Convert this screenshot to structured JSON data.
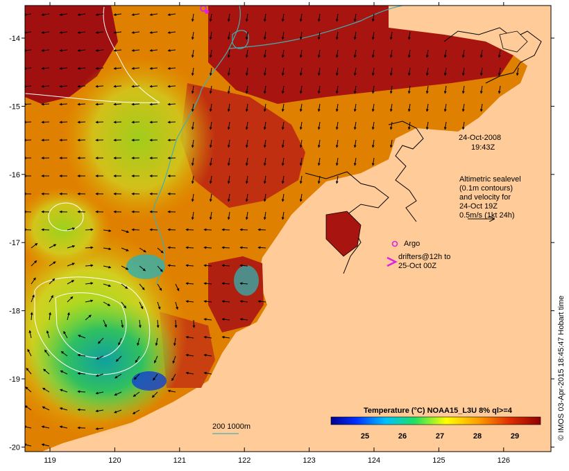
{
  "map": {
    "lon_ticks": [
      "119",
      "120",
      "121",
      "122",
      "123",
      "124",
      "125",
      "126"
    ],
    "lat_ticks": [
      "-14",
      "-15",
      "-16",
      "-17",
      "-18",
      "-19",
      "-20"
    ],
    "datetime": {
      "date": "24-Oct-2008",
      "time": "19:43Z"
    },
    "altimetry_note": [
      "Altimetric sealevel",
      "(0.1m contours)",
      "and velocity for",
      "24-Oct 19Z",
      "0.5m/s (1kt 24h)"
    ],
    "argo_label": "Argo",
    "drifters_label": [
      "drifters@12h to",
      "25-Oct 00Z"
    ],
    "depth_label": "200  1000m",
    "colorbar": {
      "title": "Temperature (°C) NOAA15_L3U 8% ql>=4",
      "ticks": [
        "25",
        "26",
        "27",
        "28",
        "29"
      ]
    },
    "credit": "© IMOS 03-Apr-2015 18:45:47 Hobart time",
    "colors": {
      "land": "#ffcc99",
      "warm": "#b01010",
      "contour": "#ffffff",
      "isobath": "#40b0b0",
      "argo": "#e020e0"
    }
  }
}
